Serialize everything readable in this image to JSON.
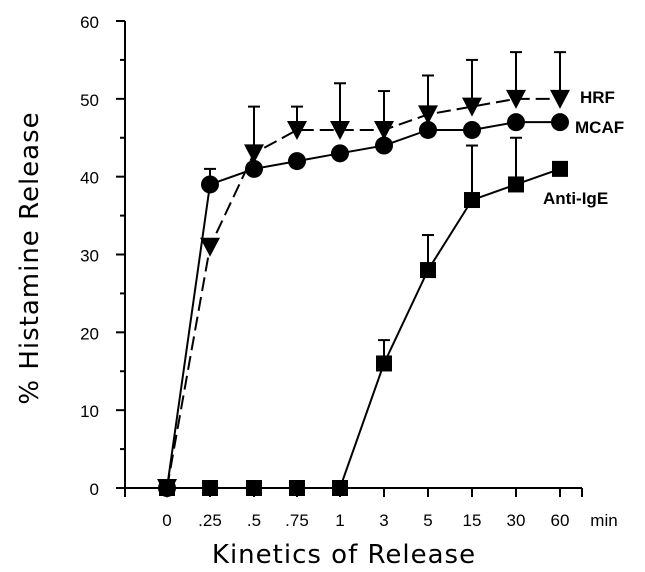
{
  "chart_data": {
    "type": "line",
    "title": "",
    "xlabel": "Kinetics of Release",
    "ylabel": "% Histamine Release",
    "x_unit_label": "min",
    "categories": [
      "0",
      ".25",
      ".5",
      ".75",
      "1",
      "3",
      "5",
      "15",
      "30",
      "60"
    ],
    "ylim": [
      0,
      60
    ],
    "yticks": [
      0,
      10,
      20,
      30,
      40,
      50,
      60
    ],
    "grid": false,
    "legend": "inline labels at line ends",
    "series": [
      {
        "name": "HRF",
        "marker": "triangle-down",
        "dashed": true,
        "values": [
          0,
          31,
          43,
          46,
          46,
          46,
          48,
          49,
          50,
          50
        ],
        "error_upper": [
          null,
          null,
          49,
          49,
          52,
          51,
          53,
          55,
          56,
          56
        ]
      },
      {
        "name": "MCAF",
        "marker": "circle",
        "dashed": false,
        "values": [
          0,
          39,
          41,
          42,
          43,
          44,
          46,
          46,
          47,
          47
        ],
        "error_upper": [
          null,
          41,
          null,
          null,
          null,
          null,
          null,
          null,
          null,
          null
        ]
      },
      {
        "name": "Anti-IgE",
        "marker": "square",
        "dashed": false,
        "values": [
          0,
          0,
          0,
          0,
          0,
          16,
          28,
          37,
          39,
          41
        ],
        "error_upper": [
          null,
          null,
          null,
          null,
          null,
          19,
          32.5,
          44,
          45,
          null
        ]
      }
    ]
  }
}
